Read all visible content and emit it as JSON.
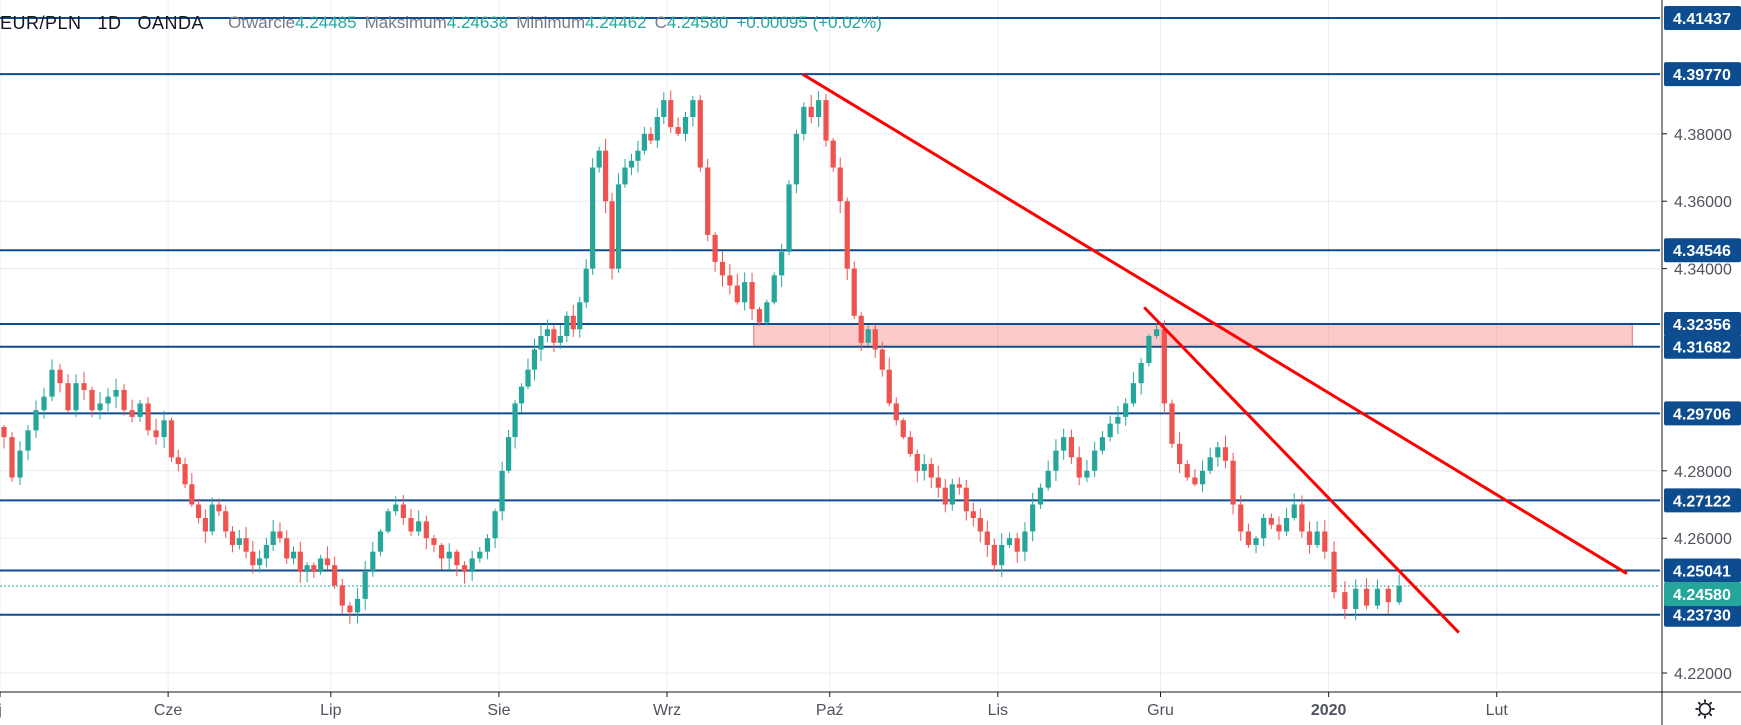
{
  "header": {
    "symbol": "EUR/PLN",
    "interval": "1D",
    "source": "OANDA",
    "open_label": "Otwarcie",
    "open_value": "4.24485",
    "high_label": "Maksimum",
    "high_value": "4.24638",
    "low_label": "Minimum",
    "low_value": "4.24462",
    "close_label": "C",
    "close_value": "4.24580",
    "change_value": "+0.00095 (+0.02%)"
  },
  "settings_icon": "gear-icon",
  "colors": {
    "up": "#26a69a",
    "down": "#ef5350",
    "level_line": "#0d4c8f",
    "label_bg": "#0d4c8f",
    "trend": "#ff0000",
    "zone": "rgba(239,83,80,0.30)",
    "current": "#26a69a",
    "grid": "#e9ecf2",
    "axis_text": "#50535e"
  },
  "chart_data": {
    "type": "candlestick",
    "symbol": "EUR/PLN",
    "interval": "1D",
    "x_axis": {
      "start": "2019-05-01",
      "end": "2020-03-01",
      "tick_labels": [
        "j",
        "Cze",
        "Lip",
        "Sie",
        "Wrz",
        "Paź",
        "Lis",
        "Gru",
        "2020",
        "Lut"
      ],
      "tick_dates": [
        "2019-05-01",
        "2019-06-01",
        "2019-07-01",
        "2019-08-01",
        "2019-09-01",
        "2019-10-01",
        "2019-11-01",
        "2019-12-01",
        "2020-01-01",
        "2020-02-01"
      ]
    },
    "y_axis": {
      "range": [
        4.214,
        4.418
      ],
      "tick_values": [
        4.22,
        4.26,
        4.28,
        4.34,
        4.36,
        4.38
      ],
      "tick_labels": [
        "4.22000",
        "4.26000",
        "4.28000",
        "4.34000",
        "4.36000",
        "4.38000"
      ]
    },
    "price_levels": [
      {
        "value": 4.41437,
        "label": "4.41437"
      },
      {
        "value": 4.3977,
        "label": "4.39770"
      },
      {
        "value": 4.34546,
        "label": "4.34546"
      },
      {
        "value": 4.32356,
        "label": "4.32356"
      },
      {
        "value": 4.31682,
        "label": "4.31682"
      },
      {
        "value": 4.29706,
        "label": "4.29706"
      },
      {
        "value": 4.27122,
        "label": "4.27122"
      },
      {
        "value": 4.25041,
        "label": "4.25041"
      },
      {
        "value": 4.2373,
        "label": "4.23730"
      }
    ],
    "current_price": {
      "value": 4.2458,
      "label": "4.24580"
    },
    "zone": {
      "from": "2019-09-17",
      "to": "2020-02-26",
      "low": 4.31682,
      "high": 4.32356
    },
    "trendlines": [
      {
        "x1": "2019-09-26",
        "y1": 4.3977,
        "x2": "2020-02-25",
        "y2": 4.2495
      },
      {
        "x1": "2019-11-28",
        "y1": 4.3285,
        "x2": "2020-01-25",
        "y2": 4.232
      }
    ],
    "daily_closes": [
      [
        4.29,
        4.278,
        4.286,
        4.292,
        4.298,
        4.302,
        4.31,
        4.306,
        4.298,
        4.306,
        4.304,
        4.298,
        4.3,
        4.302,
        4.304,
        4.298,
        4.296,
        4.3,
        4.292,
        4.29,
        4.295
      ],
      [
        4.284,
        4.282,
        4.276,
        4.27,
        4.266,
        4.262,
        4.27,
        4.268,
        4.262,
        4.258,
        4.26,
        4.256,
        4.252,
        4.254,
        4.258,
        4.262,
        4.26,
        4.254,
        4.256,
        4.25,
        4.252,
        4.25,
        4.254,
        4.252
      ],
      [
        4.246,
        4.24,
        4.238,
        4.242,
        4.25,
        4.256,
        4.262,
        4.268,
        4.27,
        4.266,
        4.262,
        4.265,
        4.26,
        4.258,
        4.254,
        4.256,
        4.252,
        4.25,
        4.254,
        4.256,
        4.26,
        4.268
      ],
      [
        4.28,
        4.29,
        4.3,
        4.305,
        4.31,
        4.316,
        4.32,
        4.322,
        4.318,
        4.32,
        4.326,
        4.322,
        4.33,
        4.34,
        4.37,
        4.375,
        4.36,
        4.34,
        4.365,
        4.37,
        4.372,
        4.375,
        4.38,
        4.378,
        4.385,
        4.39
      ],
      [
        4.382,
        4.38,
        4.385,
        4.39,
        4.37,
        4.35,
        4.342,
        4.338,
        4.335,
        4.33,
        4.336,
        4.328,
        4.324,
        4.33,
        4.338,
        4.345,
        4.365,
        4.38,
        4.388,
        4.385,
        4.39,
        4.378
      ],
      [
        4.37,
        4.36,
        4.34,
        4.326,
        4.318,
        4.322,
        4.316,
        4.31,
        4.3,
        4.295,
        4.29,
        4.285,
        4.28,
        4.282,
        4.278,
        4.275,
        4.27,
        4.276,
        4.275,
        4.268,
        4.266,
        4.262,
        4.258,
        4.252
      ],
      [
        4.258,
        4.26,
        4.256,
        4.262,
        4.27,
        4.275,
        4.28,
        4.286,
        4.29,
        4.284,
        4.278,
        4.28,
        4.286,
        4.29,
        4.294,
        4.296,
        4.3,
        4.306,
        4.312,
        4.32,
        4.322
      ],
      [
        4.3,
        4.288,
        4.282,
        4.278,
        4.276,
        4.28,
        4.284,
        4.287,
        4.283,
        4.27,
        4.262,
        4.258,
        4.26,
        4.266,
        4.264,
        4.262,
        4.266,
        4.27,
        4.262,
        4.258,
        4.262,
        4.256
      ],
      [
        4.244,
        4.239,
        4.245,
        4.24,
        4.245,
        4.241,
        4.2458
      ]
    ]
  }
}
